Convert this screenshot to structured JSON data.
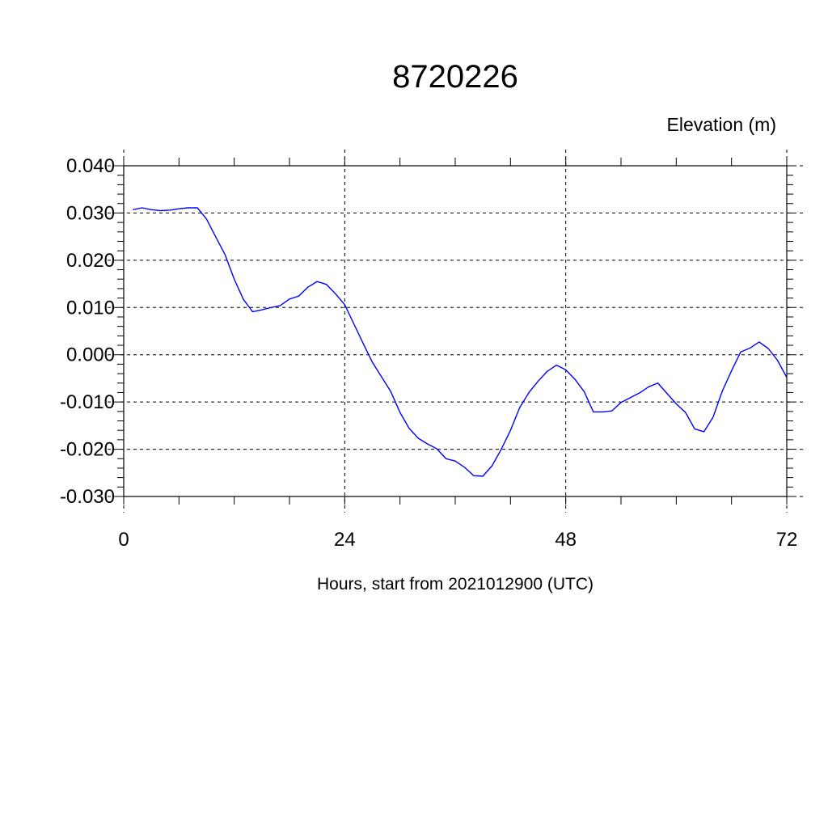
{
  "chart_data": {
    "type": "line",
    "title": "8720226",
    "subtitle": "Elevation (m)",
    "xlabel": "Hours, start from 2021012900 (UTC)",
    "ylabel": "",
    "xlim": [
      0,
      72
    ],
    "ylim": [
      -0.03,
      0.04
    ],
    "x_ticks": [
      0,
      24,
      48,
      72
    ],
    "x_tick_labels": [
      "0",
      "24",
      "48",
      "72"
    ],
    "y_ticks": [
      -0.03,
      -0.02,
      -0.01,
      0.0,
      0.01,
      0.02,
      0.03,
      0.04
    ],
    "y_tick_labels": [
      "-0.030",
      "-0.020",
      "-0.010",
      "0.000",
      "0.010",
      "0.020",
      "0.030",
      "0.040"
    ],
    "grid": true,
    "series_color": "#0000ff",
    "x": [
      1,
      2,
      3,
      4,
      5,
      6,
      7,
      8,
      9,
      10,
      11,
      12,
      13,
      14,
      15,
      16,
      17,
      18,
      19,
      20,
      21,
      22,
      23,
      24,
      25,
      26,
      27,
      28,
      29,
      30,
      31,
      32,
      33,
      34,
      35,
      36,
      37,
      38,
      39,
      40,
      41,
      42,
      43,
      44,
      45,
      46,
      47,
      48,
      49,
      50,
      51,
      52,
      53,
      54,
      55,
      56,
      57,
      58,
      59,
      60,
      61,
      62,
      63,
      64,
      65,
      66,
      67,
      68,
      69,
      70,
      71,
      72
    ],
    "series": [
      {
        "values": [
          0.0307,
          0.0311,
          0.0307,
          0.0305,
          0.0306,
          0.0309,
          0.0311,
          0.0311,
          0.0287,
          0.0249,
          0.0212,
          0.016,
          0.0117,
          0.0091,
          0.0095,
          0.01,
          0.0104,
          0.0118,
          0.0124,
          0.0143,
          0.0155,
          0.0149,
          0.0129,
          0.0106,
          0.0065,
          0.0024,
          -0.0016,
          -0.0047,
          -0.0078,
          -0.0122,
          -0.0156,
          -0.0177,
          -0.0189,
          -0.0199,
          -0.022,
          -0.0225,
          -0.0238,
          -0.0256,
          -0.0257,
          -0.0235,
          -0.02,
          -0.016,
          -0.0112,
          -0.008,
          -0.0056,
          -0.0035,
          -0.0022,
          -0.0032,
          -0.0052,
          -0.0078,
          -0.0121,
          -0.0121,
          -0.0119,
          -0.0101,
          -0.0091,
          -0.0081,
          -0.0068,
          -0.006,
          -0.0082,
          -0.0104,
          -0.0122,
          -0.0157,
          -0.0163,
          -0.0132,
          -0.0077,
          -0.0034,
          0.0006,
          0.0014,
          0.0027,
          0.0013,
          -0.0012,
          -0.0048
        ]
      }
    ]
  }
}
